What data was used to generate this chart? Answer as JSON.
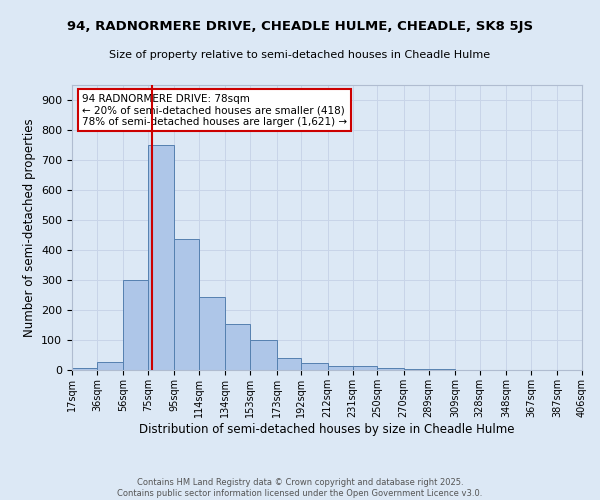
{
  "title": "94, RADNORMERE DRIVE, CHEADLE HULME, CHEADLE, SK8 5JS",
  "subtitle": "Size of property relative to semi-detached houses in Cheadle Hulme",
  "xlabel": "Distribution of semi-detached houses by size in Cheadle Hulme",
  "ylabel": "Number of semi-detached properties",
  "footer_line1": "Contains HM Land Registry data © Crown copyright and database right 2025.",
  "footer_line2": "Contains public sector information licensed under the Open Government Licence v3.0.",
  "bin_labels": [
    "17sqm",
    "36sqm",
    "56sqm",
    "75sqm",
    "95sqm",
    "114sqm",
    "134sqm",
    "153sqm",
    "173sqm",
    "192sqm",
    "212sqm",
    "231sqm",
    "250sqm",
    "270sqm",
    "289sqm",
    "309sqm",
    "328sqm",
    "348sqm",
    "367sqm",
    "387sqm",
    "406sqm"
  ],
  "bar_values": [
    8,
    28,
    300,
    750,
    438,
    245,
    155,
    100,
    40,
    22,
    15,
    12,
    8,
    3,
    2,
    0,
    0,
    0,
    0,
    0,
    0
  ],
  "bin_edges": [
    17,
    36,
    56,
    75,
    95,
    114,
    134,
    153,
    173,
    192,
    212,
    231,
    250,
    270,
    289,
    309,
    328,
    348,
    367,
    387,
    406
  ],
  "bar_color": "#aec6e8",
  "bar_edge_color": "#5580b0",
  "bar_edge_width": 0.7,
  "red_line_x": 78,
  "annotation_text": "94 RADNORMERE DRIVE: 78sqm\n← 20% of semi-detached houses are smaller (418)\n78% of semi-detached houses are larger (1,621) →",
  "annotation_box_color": "#ffffff",
  "annotation_box_edge": "#cc0000",
  "grid_color": "#c8d4e8",
  "background_color": "#dce8f5",
  "ylim": [
    0,
    950
  ],
  "yticks": [
    0,
    100,
    200,
    300,
    400,
    500,
    600,
    700,
    800,
    900
  ]
}
